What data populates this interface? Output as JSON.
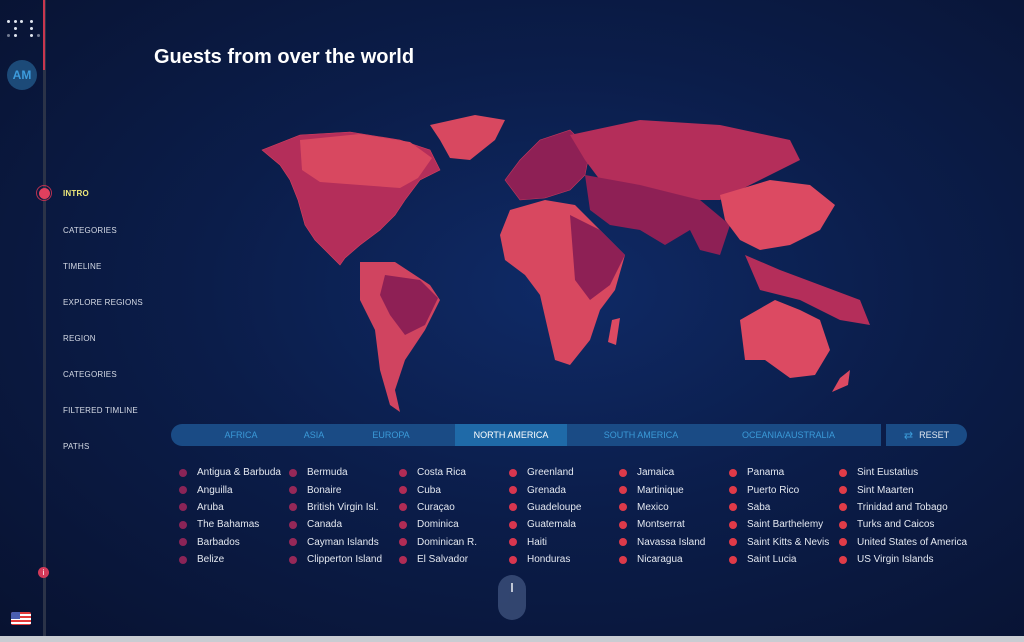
{
  "sidebar": {
    "avatar_initials": "AM",
    "nav": [
      "INTRO",
      "CATEGORIES",
      "TIMELINE",
      "EXPLORE REGIONS",
      "REGION",
      "CATEGORIES",
      "FILTERED TIMLINE",
      "PATHS"
    ],
    "active_index": 0,
    "info_label": "i"
  },
  "header": {
    "title": "Guests from over the world"
  },
  "regions": {
    "tabs": [
      "AFRICA",
      "ASIA",
      "EUROPA",
      "NORTH AMERICA",
      "SOUTH AMERICA",
      "OCEANIA/AUSTRALIA"
    ],
    "active": "NORTH AMERICA",
    "reset_label": "RESET",
    "reset_icon": "swap-arrows-icon"
  },
  "countries": {
    "columns": [
      [
        "Antigua & Barbuda",
        "Anguilla",
        "Aruba",
        "The Bahamas",
        "Barbados",
        "Belize"
      ],
      [
        "Bermuda",
        "Bonaire",
        "British Virgin Isl.",
        "Canada",
        "Cayman Islands",
        "Clipperton Island"
      ],
      [
        "Costa Rica",
        "Cuba",
        "Curaçao",
        "Dominica",
        "Dominican R.",
        "El Salvador"
      ],
      [
        "Greenland",
        "Grenada",
        "Guadeloupe",
        "Guatemala",
        "Haiti",
        "Honduras"
      ],
      [
        "Jamaica",
        "Martinique",
        "Mexico",
        "Montserrat",
        "Navassa Island",
        "Nicaragua"
      ],
      [
        "Panama",
        "Puerto Rico",
        "Saba",
        "Saint Barthelemy",
        "Saint Kitts & Nevis",
        "Saint Lucia"
      ],
      [
        "Sint Eustatius",
        "Sint Maarten",
        "Trinidad and Tobago",
        "Turks and Caicos",
        "United States of America",
        "US Virgin Islands"
      ]
    ],
    "dot_colors": [
      "#8a2457",
      "#962858",
      "#b02c55",
      "#d8364f",
      "#dc3a4a",
      "#e03a48",
      "#e03c48"
    ]
  },
  "colors": {
    "map_dark": "#8e2055",
    "map_mid": "#b42e5a",
    "map_light": "#dc4a62",
    "accent": "#e0405e",
    "tab_bg": "#1a4b85",
    "tab_active": "#1f6aa8"
  }
}
